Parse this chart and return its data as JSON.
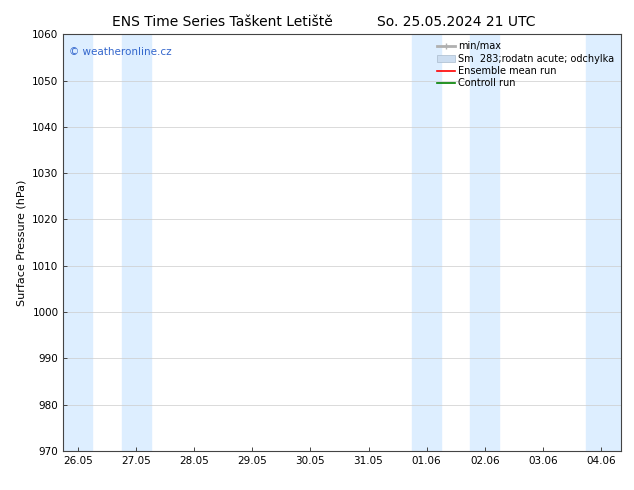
{
  "title_left": "ENS Time Series Taškent Letiště",
  "title_right": "So. 25.05.2024 21 UTC",
  "ylabel": "Surface Pressure (hPa)",
  "ylim": [
    970,
    1060
  ],
  "yticks": [
    970,
    980,
    990,
    1000,
    1010,
    1020,
    1030,
    1040,
    1050,
    1060
  ],
  "xtick_labels": [
    "26.05",
    "27.05",
    "28.05",
    "29.05",
    "30.05",
    "31.05",
    "01.06",
    "02.06",
    "03.06",
    "04.06"
  ],
  "xtick_positions": [
    0,
    1,
    2,
    3,
    4,
    5,
    6,
    7,
    8,
    9
  ],
  "xlim_min": -0.25,
  "xlim_max": 9.35,
  "shaded_bands": [
    {
      "xmin": -0.25,
      "xmax": 0.25
    },
    {
      "xmin": 0.75,
      "xmax": 1.25
    },
    {
      "xmin": 5.75,
      "xmax": 6.25
    },
    {
      "xmin": 6.75,
      "xmax": 7.25
    },
    {
      "xmin": 8.75,
      "xmax": 9.35
    }
  ],
  "band_color": "#ddeeff",
  "background_color": "#ffffff",
  "watermark_text": "© weatheronline.cz",
  "watermark_color": "#3366cc",
  "title_fontsize": 10,
  "axis_label_fontsize": 8,
  "tick_fontsize": 7.5,
  "legend_fontsize": 7,
  "minmax_color": "#b0b0b0",
  "sm_color": "#ccddf0",
  "ens_color": "red",
  "ctrl_color": "green"
}
